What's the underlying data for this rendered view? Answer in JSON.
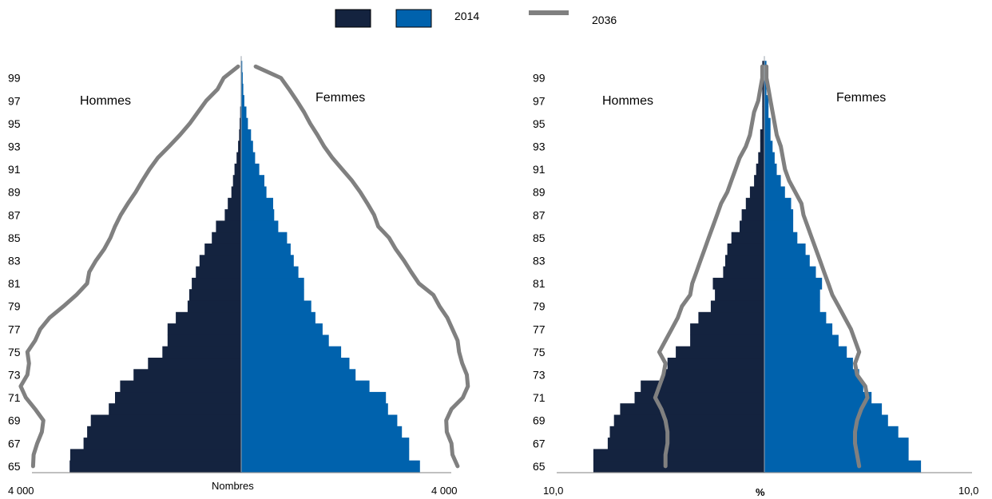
{
  "colors": {
    "hommes_2014": "#14233f",
    "femmes_2014": "#0062ad",
    "projection_2036": "#808080",
    "axis": "#808080"
  },
  "legend": {
    "label_2014": "2014",
    "label_2036": "2036"
  },
  "chart_data": [
    {
      "type": "bar",
      "orientation": "horizontal-population-pyramid",
      "unit_label": "Nombres",
      "left_group_label": "Hommes",
      "right_group_label": "Femmes",
      "xlim": [
        -4000,
        4000
      ],
      "x_tick_labels": [
        "4 000",
        "4 000"
      ],
      "y_tick_labels": [
        "65",
        "67",
        "69",
        "71",
        "73",
        "75",
        "77",
        "79",
        "81",
        "83",
        "85",
        "87",
        "89",
        "91",
        "93",
        "95",
        "97",
        "99"
      ],
      "ages": [
        65,
        66,
        67,
        68,
        69,
        70,
        71,
        72,
        73,
        74,
        75,
        76,
        77,
        78,
        79,
        80,
        81,
        82,
        83,
        84,
        85,
        86,
        87,
        88,
        89,
        90,
        91,
        92,
        93,
        94,
        95,
        96,
        97,
        98,
        99,
        100
      ],
      "series": [
        {
          "name": "2014",
          "group": "Hommes",
          "values": [
            3330,
            3320,
            3060,
            2990,
            2920,
            2570,
            2450,
            2350,
            2090,
            1810,
            1530,
            1430,
            1430,
            1270,
            1040,
            1010,
            960,
            880,
            810,
            710,
            570,
            490,
            320,
            260,
            190,
            160,
            130,
            90,
            60,
            40,
            30,
            20,
            10,
            10,
            10,
            10
          ]
        },
        {
          "name": "2014",
          "group": "Femmes",
          "values": [
            3470,
            3260,
            3260,
            3120,
            3030,
            2850,
            2810,
            2490,
            2220,
            2100,
            1940,
            1700,
            1580,
            1440,
            1360,
            1220,
            1220,
            1110,
            1020,
            960,
            890,
            720,
            640,
            620,
            490,
            450,
            350,
            270,
            230,
            190,
            130,
            100,
            60,
            40,
            30,
            20
          ]
        },
        {
          "name": "2036",
          "group": "Hommes",
          "values": [
            4040,
            4030,
            3960,
            3870,
            3840,
            4000,
            4180,
            4280,
            4150,
            4120,
            4150,
            4000,
            3900,
            3720,
            3450,
            3200,
            2990,
            2950,
            2820,
            2660,
            2540,
            2450,
            2340,
            2200,
            2050,
            1920,
            1780,
            1620,
            1400,
            1190,
            1000,
            840,
            680,
            460,
            340,
            60
          ]
        },
        {
          "name": "2036",
          "group": "Femmes",
          "values": [
            4200,
            4100,
            4080,
            3990,
            3980,
            4080,
            4300,
            4400,
            4380,
            4290,
            4230,
            4200,
            4100,
            4000,
            3850,
            3730,
            3450,
            3300,
            3160,
            3000,
            2870,
            2660,
            2580,
            2450,
            2310,
            2150,
            1960,
            1770,
            1610,
            1480,
            1340,
            1220,
            1080,
            930,
            770,
            280
          ]
        }
      ]
    },
    {
      "type": "bar",
      "orientation": "horizontal-population-pyramid",
      "unit_label": "%",
      "left_group_label": "Hommes",
      "right_group_label": "Femmes",
      "xlim": [
        -10,
        10
      ],
      "x_tick_labels": [
        "10,0",
        "10,0"
      ],
      "y_tick_labels": [
        "65",
        "67",
        "69",
        "71",
        "73",
        "75",
        "77",
        "79",
        "81",
        "83",
        "85",
        "87",
        "89",
        "91",
        "93",
        "95",
        "97",
        "99"
      ],
      "ages": [
        65,
        66,
        67,
        68,
        69,
        70,
        71,
        72,
        73,
        74,
        75,
        76,
        77,
        78,
        79,
        80,
        81,
        82,
        83,
        84,
        85,
        86,
        87,
        88,
        89,
        90,
        91,
        92,
        93,
        94,
        95,
        96,
        97,
        98,
        99,
        100
      ],
      "series": [
        {
          "name": "2014",
          "group": "Hommes",
          "values": [
            8.3,
            8.3,
            7.6,
            7.5,
            7.3,
            7.0,
            6.3,
            6.0,
            4.9,
            4.7,
            4.3,
            3.6,
            3.6,
            3.2,
            2.6,
            2.4,
            2.5,
            2.0,
            1.9,
            1.8,
            1.6,
            1.2,
            1.1,
            0.9,
            0.7,
            0.5,
            0.4,
            0.3,
            0.2,
            0.2,
            0.1,
            0.1,
            0.1,
            0.1,
            0.1,
            0.1
          ]
        },
        {
          "name": "2014",
          "group": "Femmes",
          "values": [
            7.6,
            7.0,
            7.0,
            6.5,
            6.0,
            5.7,
            5.2,
            4.8,
            4.6,
            4.3,
            4.0,
            3.6,
            3.3,
            3.0,
            2.7,
            2.7,
            2.8,
            2.5,
            2.2,
            2.0,
            1.6,
            1.4,
            1.4,
            1.3,
            1.0,
            0.8,
            0.6,
            0.5,
            0.4,
            0.3,
            0.3,
            0.2,
            0.2,
            0.1,
            0.1,
            0.1
          ]
        },
        {
          "name": "2036",
          "group": "Hommes",
          "values": [
            4.8,
            4.8,
            4.7,
            4.7,
            4.8,
            5.0,
            5.3,
            5.1,
            4.9,
            4.8,
            5.1,
            4.8,
            4.5,
            4.2,
            4.0,
            3.6,
            3.5,
            3.3,
            3.1,
            2.9,
            2.7,
            2.5,
            2.3,
            2.1,
            1.8,
            1.6,
            1.4,
            1.2,
            0.9,
            0.7,
            0.6,
            0.5,
            0.3,
            0.2,
            0.1,
            0.1
          ]
        },
        {
          "name": "2036",
          "group": "Femmes",
          "values": [
            4.6,
            4.5,
            4.4,
            4.4,
            4.5,
            4.7,
            5.0,
            4.9,
            4.5,
            4.4,
            4.6,
            4.4,
            4.2,
            3.9,
            3.6,
            3.3,
            3.1,
            2.9,
            2.7,
            2.5,
            2.3,
            2.1,
            1.9,
            1.8,
            1.5,
            1.2,
            1.0,
            0.9,
            0.8,
            0.6,
            0.5,
            0.4,
            0.3,
            0.2,
            0.1,
            0.1
          ]
        }
      ]
    }
  ]
}
